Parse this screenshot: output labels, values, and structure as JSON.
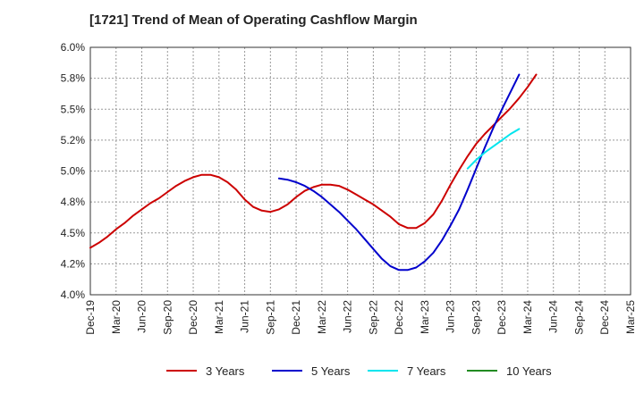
{
  "chart_data": {
    "type": "line",
    "title": "[1721]  Trend of Mean of Operating Cashflow Margin",
    "xlabel": "",
    "ylabel": "",
    "ylim": [
      4.0,
      6.0
    ],
    "y_ticks": [
      "4.0%",
      "4.2%",
      "4.5%",
      "4.8%",
      "5.0%",
      "5.2%",
      "5.5%",
      "5.8%",
      "6.0%"
    ],
    "x_ticks": [
      "Dec-19",
      "Mar-20",
      "Jun-20",
      "Sep-20",
      "Dec-20",
      "Mar-21",
      "Jun-21",
      "Sep-21",
      "Dec-21",
      "Mar-22",
      "Jun-22",
      "Sep-22",
      "Dec-22",
      "Mar-23",
      "Jun-23",
      "Sep-23",
      "Dec-23",
      "Mar-24",
      "Jun-24",
      "Sep-24",
      "Dec-24",
      "Mar-25"
    ],
    "grid": true,
    "legend_position": "bottom",
    "series": [
      {
        "name": "3 Years",
        "color": "#cc0000",
        "points": [
          [
            "Dec-19",
            4.38
          ],
          [
            "Jan-20",
            4.42
          ],
          [
            "Feb-20",
            4.47
          ],
          [
            "Mar-20",
            4.53
          ],
          [
            "Apr-20",
            4.58
          ],
          [
            "May-20",
            4.64
          ],
          [
            "Jun-20",
            4.69
          ],
          [
            "Jul-20",
            4.74
          ],
          [
            "Aug-20",
            4.78
          ],
          [
            "Sep-20",
            4.83
          ],
          [
            "Oct-20",
            4.88
          ],
          [
            "Nov-20",
            4.92
          ],
          [
            "Dec-20",
            4.95
          ],
          [
            "Jan-21",
            4.97
          ],
          [
            "Feb-21",
            4.97
          ],
          [
            "Mar-21",
            4.95
          ],
          [
            "Apr-21",
            4.91
          ],
          [
            "May-21",
            4.85
          ],
          [
            "Jun-21",
            4.77
          ],
          [
            "Jul-21",
            4.71
          ],
          [
            "Aug-21",
            4.68
          ],
          [
            "Sep-21",
            4.67
          ],
          [
            "Oct-21",
            4.69
          ],
          [
            "Nov-21",
            4.73
          ],
          [
            "Dec-21",
            4.79
          ],
          [
            "Jan-22",
            4.84
          ],
          [
            "Feb-22",
            4.87
          ],
          [
            "Mar-22",
            4.89
          ],
          [
            "Apr-22",
            4.89
          ],
          [
            "May-22",
            4.88
          ],
          [
            "Jun-22",
            4.85
          ],
          [
            "Jul-22",
            4.81
          ],
          [
            "Aug-22",
            4.77
          ],
          [
            "Sep-22",
            4.73
          ],
          [
            "Oct-22",
            4.68
          ],
          [
            "Nov-22",
            4.63
          ],
          [
            "Dec-22",
            4.57
          ],
          [
            "Jan-23",
            4.54
          ],
          [
            "Feb-23",
            4.54
          ],
          [
            "Mar-23",
            4.58
          ],
          [
            "Apr-23",
            4.65
          ],
          [
            "May-23",
            4.76
          ],
          [
            "Jun-23",
            4.89
          ],
          [
            "Jul-23",
            5.01
          ],
          [
            "Aug-23",
            5.12
          ],
          [
            "Sep-23",
            5.22
          ],
          [
            "Oct-23",
            5.3
          ],
          [
            "Nov-23",
            5.37
          ],
          [
            "Dec-23",
            5.44
          ],
          [
            "Jan-24",
            5.51
          ],
          [
            "Feb-24",
            5.59
          ],
          [
            "Mar-24",
            5.68
          ],
          [
            "Apr-24",
            5.78
          ]
        ]
      },
      {
        "name": "5 Years",
        "color": "#0000cc",
        "points": [
          [
            "Oct-21",
            4.94
          ],
          [
            "Nov-21",
            4.93
          ],
          [
            "Dec-21",
            4.91
          ],
          [
            "Jan-22",
            4.88
          ],
          [
            "Feb-22",
            4.84
          ],
          [
            "Mar-22",
            4.79
          ],
          [
            "Apr-22",
            4.73
          ],
          [
            "May-22",
            4.67
          ],
          [
            "Jun-22",
            4.6
          ],
          [
            "Jul-22",
            4.53
          ],
          [
            "Aug-22",
            4.45
          ],
          [
            "Sep-22",
            4.37
          ],
          [
            "Oct-22",
            4.29
          ],
          [
            "Nov-22",
            4.23
          ],
          [
            "Dec-22",
            4.2
          ],
          [
            "Jan-23",
            4.2
          ],
          [
            "Feb-23",
            4.22
          ],
          [
            "Mar-23",
            4.27
          ],
          [
            "Apr-23",
            4.34
          ],
          [
            "May-23",
            4.44
          ],
          [
            "Jun-23",
            4.56
          ],
          [
            "Jul-23",
            4.69
          ],
          [
            "Aug-23",
            4.85
          ],
          [
            "Sep-23",
            5.02
          ],
          [
            "Oct-23",
            5.19
          ],
          [
            "Nov-23",
            5.35
          ],
          [
            "Dec-23",
            5.5
          ],
          [
            "Jan-24",
            5.64
          ],
          [
            "Feb-24",
            5.78
          ]
        ]
      },
      {
        "name": "7 Years",
        "color": "#00e5ee",
        "points": [
          [
            "Aug-23",
            5.02
          ],
          [
            "Sep-23",
            5.09
          ],
          [
            "Oct-23",
            5.15
          ],
          [
            "Nov-23",
            5.2
          ],
          [
            "Dec-23",
            5.25
          ],
          [
            "Jan-24",
            5.3
          ],
          [
            "Feb-24",
            5.34
          ]
        ]
      },
      {
        "name": "10 Years",
        "color": "#228b22",
        "points": []
      }
    ]
  }
}
